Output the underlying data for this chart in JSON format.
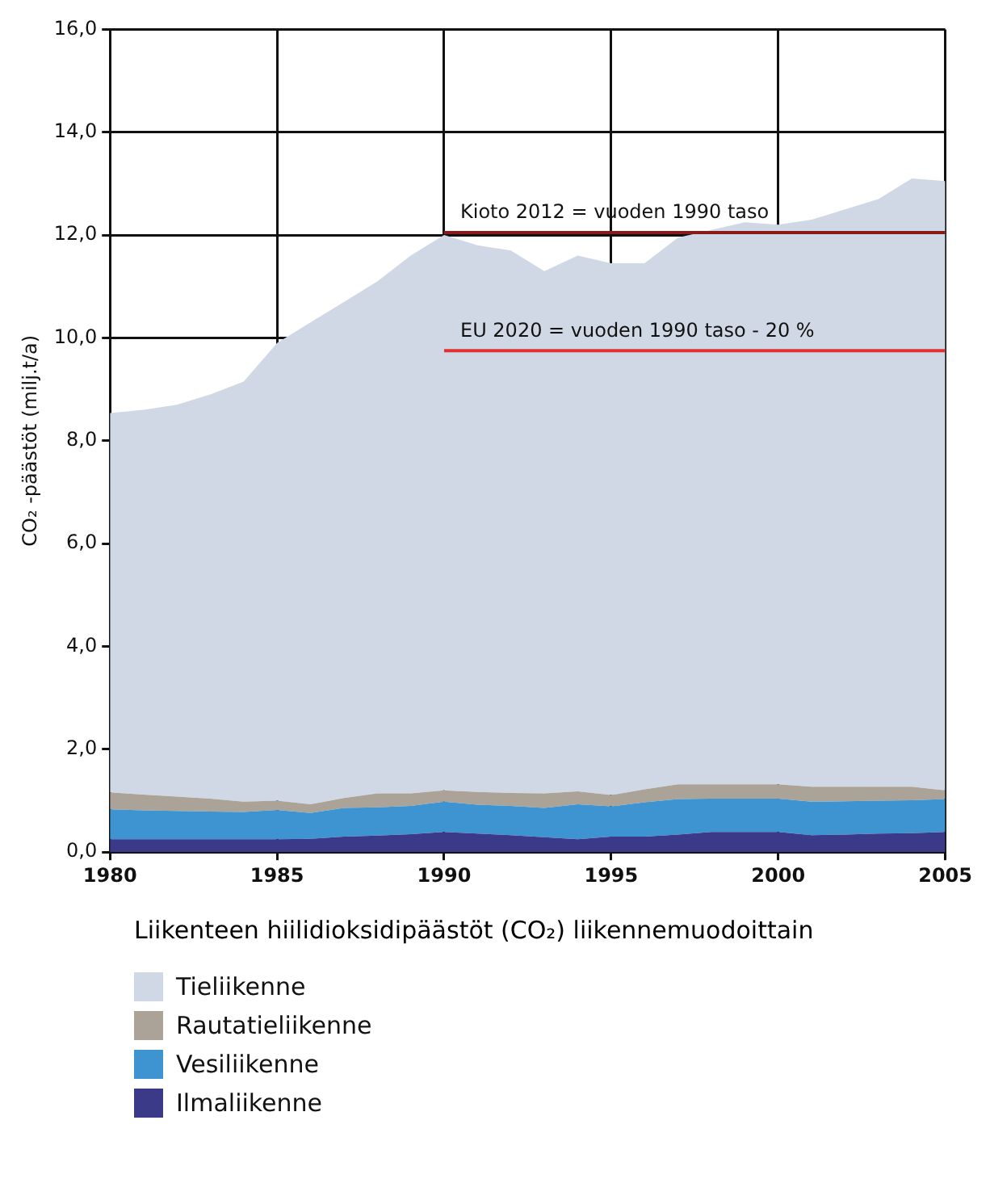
{
  "chart_data": {
    "type": "area",
    "stacked": true,
    "title": "Liikenteen hiilidioksidipäästöt (CO₂) liikennemuodoittain",
    "ylabel": "CO₂ -päästöt (milj.t/a)",
    "x": [
      1980,
      1981,
      1982,
      1983,
      1984,
      1985,
      1986,
      1987,
      1988,
      1989,
      1990,
      1991,
      1992,
      1993,
      1994,
      1995,
      1996,
      1997,
      1998,
      1999,
      2000,
      2001,
      2002,
      2003,
      2004,
      2005
    ],
    "series": [
      {
        "name": "Ilmaliikenne",
        "color": "#3a3a88",
        "values": [
          0.25,
          0.25,
          0.25,
          0.25,
          0.25,
          0.25,
          0.26,
          0.3,
          0.32,
          0.35,
          0.39,
          0.36,
          0.33,
          0.29,
          0.25,
          0.3,
          0.3,
          0.34,
          0.39,
          0.39,
          0.39,
          0.33,
          0.34,
          0.36,
          0.37,
          0.39
        ]
      },
      {
        "name": "Vesiliikenne",
        "color": "#3d94d0",
        "values": [
          0.58,
          0.56,
          0.55,
          0.54,
          0.53,
          0.57,
          0.5,
          0.56,
          0.55,
          0.55,
          0.59,
          0.56,
          0.57,
          0.57,
          0.68,
          0.59,
          0.67,
          0.69,
          0.65,
          0.65,
          0.65,
          0.65,
          0.65,
          0.64,
          0.64,
          0.64
        ]
      },
      {
        "name": "Rautatieliikenne",
        "color": "#aba397",
        "values": [
          0.33,
          0.31,
          0.28,
          0.25,
          0.2,
          0.18,
          0.17,
          0.19,
          0.27,
          0.24,
          0.22,
          0.25,
          0.25,
          0.28,
          0.25,
          0.22,
          0.25,
          0.29,
          0.28,
          0.28,
          0.28,
          0.29,
          0.28,
          0.27,
          0.26,
          0.17
        ]
      },
      {
        "name": "Tieliikenne",
        "color": "#d0d8e6",
        "values": [
          7.38,
          7.48,
          7.62,
          7.86,
          8.17,
          8.9,
          9.37,
          9.65,
          9.96,
          10.46,
          10.8,
          10.63,
          10.55,
          10.16,
          10.42,
          10.34,
          10.23,
          10.63,
          10.78,
          10.93,
          10.88,
          11.03,
          11.23,
          11.43,
          11.83,
          11.85
        ]
      },
      {
        "type": "line",
        "color": "#8b1a1a",
        "values": [
          null,
          null,
          null,
          null,
          null,
          null,
          null,
          null,
          null,
          null,
          12.05,
          12.05,
          12.05,
          12.05,
          12.05,
          12.05,
          12.05,
          12.05,
          12.05,
          12.05,
          12.05,
          12.05,
          12.05,
          12.05,
          12.05,
          12.05
        ]
      },
      {
        "type": "line",
        "color": "#e03030",
        "values": [
          null,
          null,
          null,
          null,
          null,
          null,
          null,
          null,
          null,
          null,
          9.75,
          9.75,
          9.75,
          9.75,
          9.75,
          9.75,
          9.75,
          9.75,
          9.75,
          9.75,
          9.75,
          9.75,
          9.75,
          9.75,
          9.75,
          9.75
        ]
      }
    ],
    "annotations": [
      {
        "text": "Kioto 2012 = vuoden 1990 taso",
        "x": 1990,
        "y": 12.05
      },
      {
        "text": "EU 2020 = vuoden 1990 taso - 20 %",
        "x": 1990,
        "y": 9.75
      }
    ],
    "xlim": [
      1980,
      2005
    ],
    "xticks": [
      1980,
      1985,
      1990,
      1995,
      2000,
      2005
    ],
    "ylim": [
      0,
      16
    ],
    "yticks": [
      {
        "value": 0,
        "label": "0,0"
      },
      {
        "value": 2,
        "label": "2,0"
      },
      {
        "value": 4,
        "label": "4,0"
      },
      {
        "value": 6,
        "label": "6,0"
      },
      {
        "value": 8,
        "label": "8,0"
      },
      {
        "value": 10,
        "label": "10,0"
      },
      {
        "value": 12,
        "label": "12,0"
      },
      {
        "value": 14,
        "label": "14,0"
      },
      {
        "value": 16,
        "label": "16,0"
      }
    ],
    "grid": true,
    "legend": "bottom left"
  }
}
